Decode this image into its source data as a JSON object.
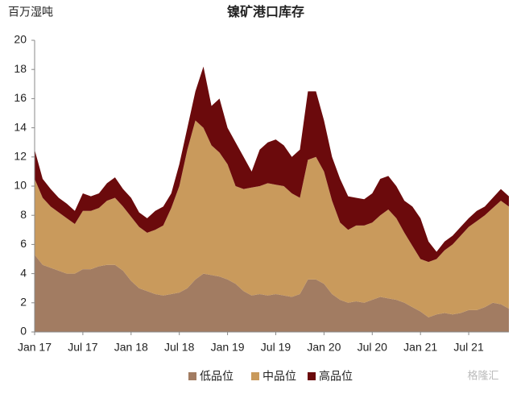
{
  "chart_data": {
    "type": "stacked_area",
    "title": "镍矿港口库存",
    "y_axis_label": "百万湿吨",
    "watermark": "格隆汇",
    "categories": [
      "Jan 17",
      null,
      null,
      null,
      null,
      null,
      "Jul 17",
      null,
      null,
      null,
      null,
      null,
      "Jan 18",
      null,
      null,
      null,
      null,
      null,
      "Jul 18",
      null,
      null,
      null,
      null,
      null,
      "Jan 19",
      null,
      null,
      null,
      null,
      null,
      "Jul 19",
      null,
      null,
      null,
      null,
      null,
      "Jan 20",
      null,
      null,
      null,
      null,
      null,
      "Jul 20",
      null,
      null,
      null,
      null,
      null,
      "Jan 21",
      null,
      null,
      null,
      null,
      null,
      "Jul 21",
      null,
      null,
      null,
      null,
      null
    ],
    "series": [
      {
        "name": "低品位",
        "color": "#a27c62",
        "values": [
          5.3,
          4.6,
          4.4,
          4.2,
          4.0,
          4.0,
          4.3,
          4.3,
          4.5,
          4.6,
          4.6,
          4.2,
          3.5,
          3.0,
          2.8,
          2.6,
          2.5,
          2.6,
          2.7,
          3.0,
          3.6,
          4.0,
          3.9,
          3.8,
          3.6,
          3.3,
          2.8,
          2.5,
          2.6,
          2.5,
          2.6,
          2.5,
          2.4,
          2.6,
          3.6,
          3.6,
          3.3,
          2.6,
          2.2,
          2.0,
          2.1,
          2.0,
          2.2,
          2.4,
          2.3,
          2.2,
          2.0,
          1.7,
          1.4,
          1.0,
          1.2,
          1.3,
          1.2,
          1.3,
          1.5,
          1.5,
          1.7,
          2.0,
          1.9,
          1.6
        ]
      },
      {
        "name": "中品位",
        "color": "#c99a5c",
        "values": [
          5.2,
          4.6,
          4.2,
          4.0,
          3.8,
          3.4,
          4.0,
          4.0,
          4.0,
          4.4,
          4.6,
          4.4,
          4.4,
          4.2,
          4.0,
          4.4,
          4.8,
          5.9,
          7.3,
          9.5,
          10.9,
          10.0,
          8.9,
          8.5,
          7.9,
          6.7,
          7.0,
          7.4,
          7.4,
          7.7,
          7.5,
          7.5,
          7.1,
          6.6,
          8.2,
          8.4,
          7.7,
          6.4,
          5.3,
          5.0,
          5.2,
          5.3,
          5.3,
          5.6,
          6.1,
          5.6,
          4.8,
          4.2,
          3.6,
          3.8,
          3.8,
          4.3,
          4.8,
          5.3,
          5.7,
          6.1,
          6.3,
          6.5,
          7.1,
          7.0
        ]
      },
      {
        "name": "高品位",
        "color": "#6b0a0c",
        "values": [
          2.0,
          1.3,
          1.2,
          1.0,
          1.0,
          0.9,
          1.2,
          1.0,
          1.0,
          1.2,
          1.4,
          1.2,
          1.3,
          1.0,
          1.0,
          1.3,
          1.3,
          1.0,
          1.5,
          1.5,
          2.0,
          4.2,
          2.7,
          3.7,
          2.5,
          3.0,
          2.2,
          1.1,
          2.5,
          2.8,
          3.1,
          2.8,
          2.5,
          3.3,
          4.7,
          4.5,
          3.5,
          3.0,
          3.0,
          2.3,
          1.9,
          1.8,
          2.0,
          2.5,
          2.3,
          2.2,
          2.2,
          2.7,
          2.8,
          1.4,
          0.5,
          0.6,
          0.6,
          0.6,
          0.6,
          0.7,
          0.6,
          0.7,
          0.8,
          0.7
        ]
      }
    ],
    "ylim": [
      0,
      20
    ],
    "yticks": [
      0,
      2,
      4,
      6,
      8,
      10,
      12,
      14,
      16,
      18,
      20
    ],
    "grid": false,
    "legend": "bottom"
  }
}
